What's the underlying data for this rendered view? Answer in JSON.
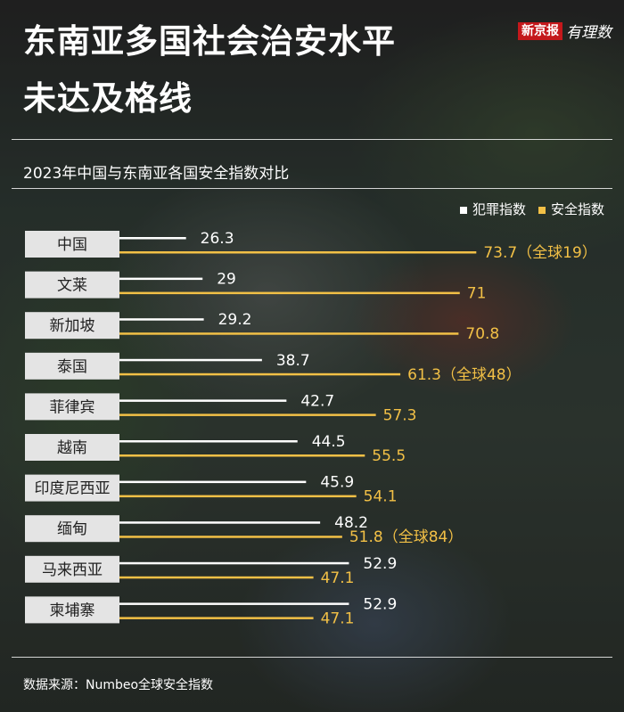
{
  "header": {
    "title_line1": "东南亚多国社会治安水平",
    "title_line2": "未达及格线",
    "logo_brand": "新京报",
    "logo_column": "有理数"
  },
  "colors": {
    "crime": "#ffffff",
    "safety": "#f2c046",
    "label_bg": "#e4e4e4",
    "label_text": "#222222"
  },
  "chart_data": {
    "type": "bar",
    "orientation": "horizontal",
    "title": "2023年中国与东南亚各国安全指数对比",
    "categories": [
      "中国",
      "文莱",
      "新加坡",
      "泰国",
      "菲律宾",
      "越南",
      "印度尼西亚",
      "缅甸",
      "马来西亚",
      "柬埔寨"
    ],
    "series": [
      {
        "name": "犯罪指数",
        "values": [
          26.3,
          29,
          29.2,
          38.7,
          42.7,
          44.5,
          45.9,
          48.2,
          52.9,
          52.9
        ],
        "labels": [
          "26.3",
          "29",
          "29.2",
          "38.7",
          "42.7",
          "44.5",
          "45.9",
          "48.2",
          "52.9",
          "52.9"
        ]
      },
      {
        "name": "安全指数",
        "values": [
          73.7,
          71,
          70.8,
          61.3,
          57.3,
          55.5,
          54.1,
          51.8,
          47.1,
          47.1
        ],
        "labels": [
          "73.7",
          "71",
          "70.8",
          "61.3",
          "57.3",
          "55.5",
          "54.1",
          "51.8",
          "47.1",
          "47.1"
        ]
      }
    ],
    "annotations": [
      {
        "category_index": 0,
        "text": "（全球19）"
      },
      {
        "category_index": 3,
        "text": "（全球48）"
      },
      {
        "category_index": 7,
        "text": "（全球84）"
      }
    ],
    "x_range": [
      0,
      80
    ],
    "grid": false
  },
  "footer": {
    "source": "数据来源：Numbeo全球安全指数"
  }
}
